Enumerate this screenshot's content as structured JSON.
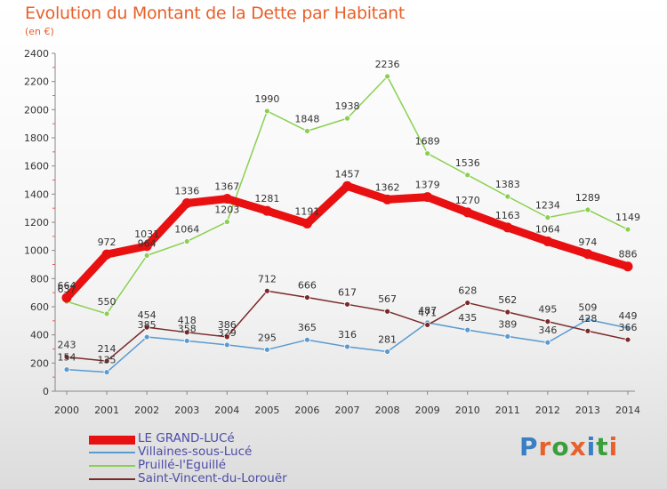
{
  "header": {
    "title": "Evolution du Montant de la Dette par Habitant",
    "subtitle": "(en €)"
  },
  "logo": {
    "text": "Proxiti",
    "colors": [
      "#3a7fc4",
      "#e8602a",
      "#3a9e3a",
      "#e8602a",
      "#3a7fc4",
      "#3a9e3a",
      "#e8602a"
    ]
  },
  "chart_data": {
    "type": "line",
    "x": [
      2000,
      2001,
      2002,
      2003,
      2004,
      2005,
      2006,
      2007,
      2008,
      2009,
      2010,
      2011,
      2012,
      2013,
      2014
    ],
    "ylim": [
      0,
      2400
    ],
    "yticks": [
      0,
      200,
      400,
      600,
      800,
      1000,
      1200,
      1400,
      1600,
      1800,
      2000,
      2200,
      2400
    ],
    "grid": false,
    "legend_position": "bottom-left",
    "series": [
      {
        "name": "LE GRAND-LUCé",
        "color": "#e81010",
        "values": [
          664,
          972,
          1031,
          1336,
          1367,
          1281,
          1191,
          1457,
          1362,
          1379,
          1270,
          1163,
          1064,
          974,
          886
        ]
      },
      {
        "name": "Villaines-sous-Lucé",
        "color": "#5a9ad0",
        "values": [
          154,
          135,
          385,
          358,
          329,
          295,
          365,
          316,
          281,
          487,
          435,
          389,
          346,
          509,
          449
        ]
      },
      {
        "name": "Pruillé-l'Eguillé",
        "color": "#8ad050",
        "values": [
          637,
          550,
          964,
          1064,
          1203,
          1990,
          1848,
          1938,
          2236,
          1689,
          1536,
          1383,
          1234,
          1289,
          1149
        ]
      },
      {
        "name": "Saint-Vincent-du-Lorouër",
        "color": "#7a2a2a",
        "values": [
          243,
          214,
          454,
          418,
          386,
          712,
          666,
          617,
          567,
          471,
          628,
          562,
          495,
          428,
          366
        ]
      }
    ]
  }
}
